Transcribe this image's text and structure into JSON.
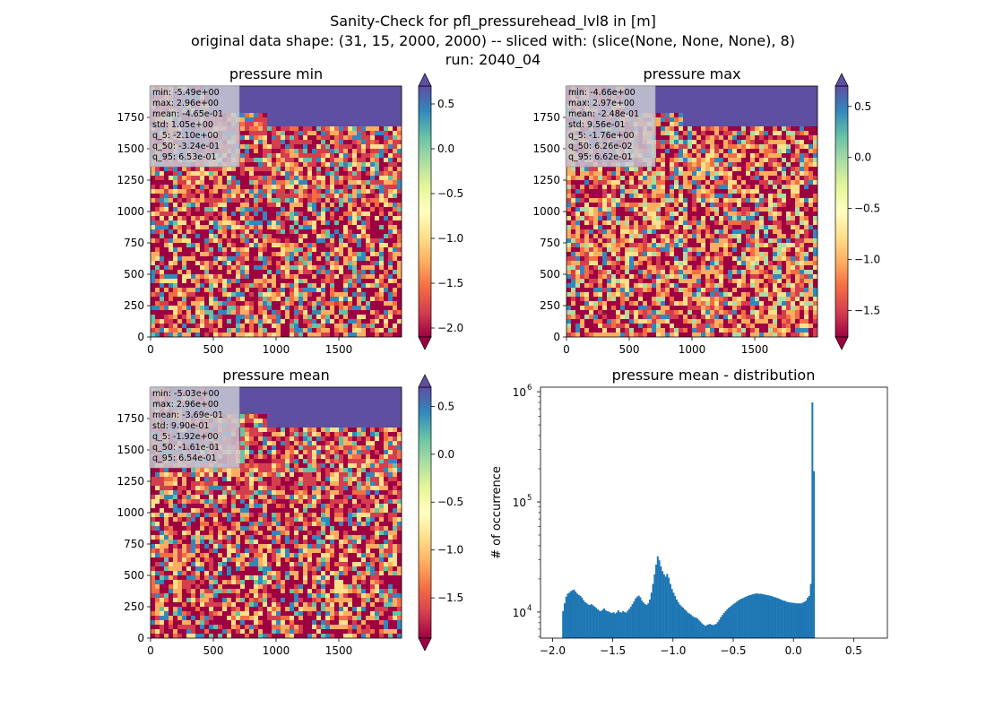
{
  "figure": {
    "title_lines": [
      "Sanity-Check for pfl_pressurehead_lvl8 in [m]",
      "original data shape: (31, 15, 2000, 2000) -- sliced with: (slice(None, None, None), 8)",
      "run: 2040_04"
    ]
  },
  "colors": {
    "colormap_spectral": [
      "#9e0142",
      "#d53e4f",
      "#f46d43",
      "#fdae61",
      "#fee08b",
      "#ffffbf",
      "#e6f598",
      "#abdda4",
      "#66c2a5",
      "#3288bd",
      "#5e4fa2"
    ],
    "histogram_bar": "#1f77b4",
    "stats_box_bg": "#c8c8d2"
  },
  "maps": [
    {
      "title": "pressure min",
      "x_ticks": [
        "0",
        "500",
        "1000",
        "1500"
      ],
      "y_ticks": [
        "0",
        "250",
        "500",
        "750",
        "1000",
        "1250",
        "1500",
        "1750"
      ],
      "stats": [
        "min: -5.49e+00",
        "max: 2.96e+00",
        "mean: -4.65e-01",
        "std: 1.05e+00",
        "q_5: -2.10e+00",
        "q_50: -3.24e-01",
        "q_95: 6.53e-01"
      ],
      "colorbar": {
        "vmin": -2.1,
        "vmax": 0.7,
        "ticks": [
          0.5,
          0.0,
          -0.5,
          -1.0,
          -1.5,
          -2.0
        ],
        "tick_labels": [
          "0.5",
          "0.0",
          "−0.5",
          "−1.0",
          "−1.5",
          "−2.0"
        ]
      }
    },
    {
      "title": "pressure max",
      "x_ticks": [
        "0",
        "500",
        "1000",
        "1500"
      ],
      "y_ticks": [
        "0",
        "250",
        "500",
        "750",
        "1000",
        "1250",
        "1500",
        "1750"
      ],
      "stats": [
        "min: -4.66e+00",
        "max: 2.97e+00",
        "mean: -2.48e-01",
        "std: 9.56e-01",
        "q_5: -1.76e+00",
        "q_50: 6.26e-02",
        "q_95: 6.62e-01"
      ],
      "colorbar": {
        "vmin": -1.76,
        "vmax": 0.7,
        "ticks": [
          0.5,
          0.0,
          -0.5,
          -1.0,
          -1.5
        ],
        "tick_labels": [
          "0.5",
          "0.0",
          "−0.5",
          "−1.0",
          "−1.5"
        ]
      }
    },
    {
      "title": "pressure mean",
      "x_ticks": [
        "0",
        "500",
        "1000",
        "1500"
      ],
      "y_ticks": [
        "0",
        "250",
        "500",
        "750",
        "1000",
        "1250",
        "1500",
        "1750"
      ],
      "stats": [
        "min: -5.03e+00",
        "max: 2.96e+00",
        "mean: -3.69e-01",
        "std: 9.90e-01",
        "q_5: -1.92e+00",
        "q_50: -1.61e-01",
        "q_95: 6.54e-01"
      ],
      "colorbar": {
        "vmin": -1.92,
        "vmax": 0.7,
        "ticks": [
          0.5,
          0.0,
          -0.5,
          -1.0,
          -1.5
        ],
        "tick_labels": [
          "0.5",
          "0.0",
          "−0.5",
          "−1.0",
          "−1.5"
        ]
      }
    }
  ],
  "chart_data": {
    "type": "bar",
    "title": "pressure mean - distribution",
    "xlabel": "",
    "ylabel": "# of occurrence",
    "y_scale": "log",
    "xlim": [
      -2.1,
      0.78
    ],
    "ylim": [
      5800,
      1100000
    ],
    "x_ticks": [
      -2.0,
      -1.5,
      -1.0,
      -0.5,
      0.0,
      0.5
    ],
    "x_tick_labels": [
      "−2.0",
      "−1.5",
      "−1.0",
      "−0.5",
      "0.0",
      "0.5"
    ],
    "y_ticks": [
      10000,
      100000,
      1000000
    ],
    "y_tick_labels": [
      "10",
      "10",
      "10"
    ],
    "y_tick_exponents": [
      "4",
      "5",
      "6"
    ],
    "bin_width": 0.0131,
    "bin_start": -1.92,
    "values": [
      10200,
      12000,
      13800,
      14700,
      15000,
      15500,
      15800,
      16000,
      15300,
      14700,
      14300,
      14000,
      13500,
      12800,
      12300,
      12000,
      11700,
      11600,
      11800,
      11500,
      11200,
      10900,
      10600,
      10300,
      10200,
      10500,
      10800,
      10400,
      10200,
      10100,
      9900,
      9800,
      10000,
      9700,
      9900,
      10400,
      10000,
      9900,
      10200,
      10000,
      9900,
      10300,
      10700,
      11200,
      11800,
      12500,
      13300,
      13800,
      14100,
      13600,
      12700,
      12200,
      11800,
      11600,
      12000,
      13000,
      15000,
      18000,
      22000,
      27000,
      32000,
      29500,
      26000,
      23500,
      22000,
      21000,
      22200,
      20500,
      18000,
      16200,
      15000,
      14000,
      13000,
      12300,
      11700,
      11300,
      11000,
      10600,
      10300,
      9900,
      9700,
      9500,
      9200,
      9000,
      8900,
      8800,
      8500,
      8200,
      7900,
      7700,
      7500,
      7600,
      7700,
      7800,
      7700,
      7600,
      7700,
      7800,
      8100,
      8500,
      9000,
      9400,
      9800,
      10200,
      10600,
      10900,
      11200,
      11500,
      11800,
      12100,
      12400,
      12700,
      13000,
      13200,
      13400,
      13600,
      13800,
      14000,
      14200,
      14300,
      14500,
      14600,
      14700,
      14800,
      14600,
      14700,
      14600,
      14500,
      14400,
      14300,
      14200,
      14100,
      14000,
      13800,
      13700,
      13500,
      13400,
      13200,
      13000,
      12800,
      12700,
      12600,
      12400,
      12300,
      12200,
      12200,
      12100,
      12100,
      12000,
      12000,
      12000,
      12000,
      12200,
      12400,
      12700,
      13500,
      14000,
      18000,
      800000,
      190000
    ]
  }
}
